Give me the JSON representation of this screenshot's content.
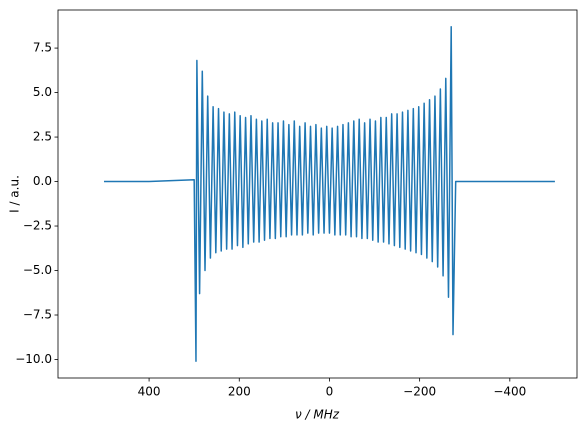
{
  "chart_data": {
    "type": "line",
    "xlabel": "ν / MHz",
    "ylabel": "I / a.u.",
    "color": "#1f77b4",
    "xlim": [
      602,
      -549
    ],
    "ylim": [
      -11.04,
      9.64
    ],
    "xticks": [
      400,
      200,
      0,
      {
        "value": -200,
        "label": "−200"
      },
      {
        "value": -400,
        "label": "−400"
      }
    ],
    "yticks": [
      7.5,
      {
        "value": 5,
        "label": "5.0"
      },
      2.5,
      {
        "value": 0,
        "label": "0.0"
      },
      {
        "value": -2.5,
        "label": "−2.5"
      },
      {
        "value": -5,
        "label": "−5.0"
      },
      {
        "value": -7.5,
        "label": "−7.5"
      },
      {
        "value": -10,
        "label": "−10.0"
      }
    ],
    "x": [
      500,
      400,
      300,
      296,
      294,
      288,
      282,
      276,
      270,
      264,
      258,
      252,
      246,
      240,
      234,
      228,
      222,
      216,
      210,
      204,
      198,
      192,
      186,
      180,
      174,
      168,
      162,
      156,
      150,
      144,
      138,
      132,
      126,
      120,
      114,
      108,
      102,
      96,
      90,
      84,
      78,
      72,
      66,
      60,
      54,
      48,
      42,
      36,
      30,
      24,
      18,
      12,
      6,
      0,
      -6,
      -12,
      -18,
      -24,
      -30,
      -36,
      -42,
      -48,
      -54,
      -60,
      -66,
      -72,
      -78,
      -84,
      -90,
      -96,
      -102,
      -108,
      -114,
      -120,
      -126,
      -132,
      -138,
      -144,
      -150,
      -156,
      -162,
      -168,
      -174,
      -180,
      -186,
      -192,
      -198,
      -204,
      -210,
      -216,
      -222,
      -228,
      -234,
      -240,
      -246,
      -252,
      -258,
      -264,
      -270,
      -274,
      -280,
      -300,
      -400,
      -500
    ],
    "values": [
      0,
      0,
      0.1,
      -10.1,
      6.8,
      -6.3,
      6.2,
      -5.0,
      4.8,
      -4.3,
      4.2,
      -4.0,
      4.1,
      -3.9,
      3.9,
      -3.8,
      3.8,
      -3.8,
      3.9,
      -3.6,
      3.7,
      -3.7,
      3.6,
      -3.5,
      3.7,
      -3.4,
      3.5,
      -3.4,
      3.4,
      -3.3,
      3.5,
      -3.2,
      3.3,
      -3.2,
      3.3,
      -3.1,
      3.4,
      -3.1,
      3.2,
      -3.0,
      3.4,
      -3.0,
      3.1,
      -3.0,
      3.3,
      -2.9,
      3.1,
      -3.0,
      3.2,
      -2.9,
      3.0,
      -2.9,
      3.1,
      -2.9,
      3.0,
      -3.0,
      3.1,
      -3.0,
      3.2,
      -3.0,
      3.3,
      -3.1,
      3.4,
      -3.1,
      3.5,
      -3.2,
      3.3,
      -3.2,
      3.5,
      -3.3,
      3.4,
      -3.4,
      3.6,
      -3.4,
      3.6,
      -3.5,
      3.8,
      -3.6,
      3.8,
      -3.7,
      3.9,
      -3.8,
      4.0,
      -3.9,
      4.1,
      -4.0,
      4.2,
      -4.1,
      4.4,
      -4.3,
      4.6,
      -4.5,
      4.8,
      -4.8,
      5.2,
      -5.3,
      5.8,
      -6.5,
      8.7,
      -8.6,
      0,
      0,
      0,
      0
    ]
  }
}
